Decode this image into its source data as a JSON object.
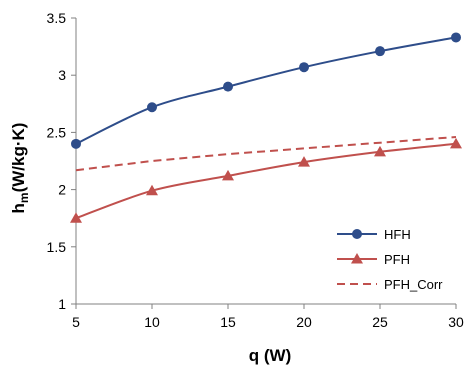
{
  "chart_data": {
    "type": "line",
    "xlabel": "q (W)",
    "ylabel_main": "h",
    "ylabel_sub": "m",
    "ylabel_rest": "(W/kg·K)",
    "x": [
      5,
      10,
      15,
      20,
      25,
      30
    ],
    "xlim": [
      5,
      30
    ],
    "ylim": [
      1,
      3.5
    ],
    "x_ticks": [
      "5",
      "10",
      "15",
      "20",
      "25",
      "30"
    ],
    "y_ticks": [
      "1",
      "1.5",
      "2",
      "2.5",
      "3",
      "3.5"
    ],
    "grid": false,
    "legend_position": "bottom-right",
    "series": [
      {
        "name": "HFH",
        "values": [
          2.4,
          2.72,
          2.9,
          3.07,
          3.21,
          3.33
        ],
        "color": "#2e4d8a",
        "marker": "circle",
        "style": "solid"
      },
      {
        "name": "PFH",
        "values": [
          1.75,
          1.99,
          2.12,
          2.24,
          2.33,
          2.4
        ],
        "color": "#c0504d",
        "marker": "triangle",
        "style": "solid"
      },
      {
        "name": "PFH_Corr",
        "values": [
          2.17,
          2.25,
          2.31,
          2.36,
          2.41,
          2.46
        ],
        "color": "#c0504d",
        "marker": "none",
        "style": "dashed"
      }
    ]
  }
}
